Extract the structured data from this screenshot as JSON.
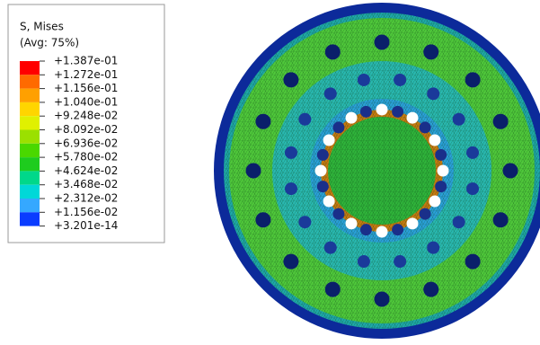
{
  "legend": {
    "title": [
      "S, Mises",
      "(Avg: 75%)"
    ],
    "labels": [
      "+1.387e-01",
      "+1.272e-01",
      "+1.156e-01",
      "+1.040e-01",
      "+9.248e-02",
      "+8.092e-02",
      "+6.936e-02",
      "+5.780e-02",
      "+4.624e-02",
      "+3.468e-02",
      "+2.312e-02",
      "+1.156e-02",
      "+3.201e-14"
    ],
    "colors": [
      "#ff0000",
      "#ff6a00",
      "#ffa000",
      "#ffd500",
      "#e0f000",
      "#9be000",
      "#4ad800",
      "#1ecc1e",
      "#00d88a",
      "#00d8d8",
      "#35a8ff",
      "#0a3cff"
    ]
  }
}
